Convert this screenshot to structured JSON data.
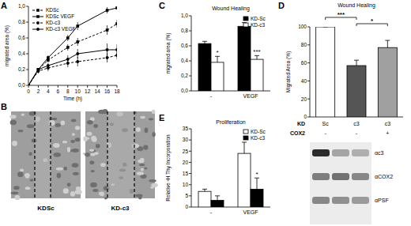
{
  "chart_data": [
    {
      "panel": "A",
      "type": "line",
      "x_label": "Time (h)",
      "y_label": "migrated area (%)",
      "xlim": [
        0,
        18
      ],
      "xticks": [
        0,
        2,
        4,
        6,
        8,
        10,
        12,
        14,
        16,
        18
      ],
      "ylim": [
        0,
        1
      ],
      "yticks": [
        {
          "value": 0,
          "label": "0,0"
        },
        {
          "value": 0.2,
          "label": "0,2"
        },
        {
          "value": 0.4,
          "label": "0,4"
        },
        {
          "value": 0.6,
          "label": "0,6"
        },
        {
          "value": 0.8,
          "label": "0,8"
        },
        {
          "value": 1,
          "label": "1,0"
        }
      ],
      "legend": "upper left",
      "x": [
        0,
        2,
        4,
        8,
        10,
        16,
        18
      ],
      "series": [
        {
          "name": "KDSc",
          "color": "#000000",
          "line_style": "dashed",
          "marker": "square",
          "values": [
            0,
            0.2,
            0.32,
            0.48,
            0.55,
            0.7,
            0.78
          ],
          "errors": [
            0,
            0.02,
            0.03,
            0.04,
            0.05,
            0.06,
            0.05
          ]
        },
        {
          "name": "KDSc VEGF",
          "color": "#000000",
          "line_style": "solid",
          "marker": "square",
          "values": [
            0,
            0.2,
            0.35,
            0.6,
            0.75,
            0.95,
            0.98
          ],
          "errors": [
            0,
            0.02,
            0.03,
            0.04,
            0.05,
            0.04,
            0.02
          ]
        },
        {
          "name": "KD-c3",
          "color": "#000000",
          "line_style": "dashed",
          "marker": "circle",
          "values": [
            0,
            0.18,
            0.22,
            0.28,
            0.3,
            0.35,
            0.38
          ],
          "errors": [
            0,
            0.03,
            0.04,
            0.05,
            0.06,
            0.06,
            0.05
          ]
        },
        {
          "name": "KD-c3 VEGF",
          "color": "#000000",
          "line_style": "solid",
          "marker": "circle",
          "values": [
            0,
            0.2,
            0.25,
            0.33,
            0.4,
            0.45,
            0.45
          ],
          "errors": [
            0,
            0.02,
            0.03,
            0.05,
            0.06,
            0.08,
            0.07
          ]
        }
      ]
    },
    {
      "panel": "C",
      "type": "bar",
      "title": "Wound Healing",
      "y_label": "migrated area (%)",
      "categories": [
        "-",
        "VEGF"
      ],
      "ylim": [
        0,
        1
      ],
      "yticks": [
        {
          "value": 0,
          "label": "0,0"
        },
        {
          "value": 0.2,
          "label": "0,2"
        },
        {
          "value": 0.4,
          "label": "0,4"
        },
        {
          "value": 0.6,
          "label": "0,6"
        },
        {
          "value": 0.8,
          "label": "0,8"
        },
        {
          "value": 1,
          "label": "1,0"
        }
      ],
      "legend": "upper right",
      "series": [
        {
          "name": "KD-Sc",
          "color": "#000000",
          "values": [
            0.63,
            0.86
          ],
          "errors": [
            0.03,
            0.05
          ]
        },
        {
          "name": "KD-c3",
          "color": "#ffffff",
          "values": [
            0.38,
            0.42
          ],
          "errors": [
            0.08,
            0.05
          ]
        }
      ],
      "annotations": [
        {
          "text": "*",
          "series": 1,
          "index": 0
        },
        {
          "text": "***",
          "series": 1,
          "index": 1
        }
      ]
    },
    {
      "panel": "D",
      "type": "bar",
      "title": "Wound Healing",
      "y_label": "Migrated Area (%)",
      "categories": [
        "Sc",
        "c3",
        "c3"
      ],
      "values": [
        100,
        57,
        77
      ],
      "errors": [
        0,
        6,
        8
      ],
      "colors": [
        "#ffffff",
        "#555555",
        "#a0a0a0"
      ],
      "ylim": [
        0,
        100
      ],
      "yticks": [
        0,
        20,
        40,
        60,
        80,
        100
      ],
      "annotations": [
        {
          "text": "***",
          "from": 0,
          "to": 1
        },
        {
          "text": "*",
          "from": 1,
          "to": 2
        }
      ],
      "conditions": [
        {
          "label": "KD",
          "cells": [
            "Sc",
            "c3",
            "c3"
          ]
        },
        {
          "label": "COX2",
          "cells": [
            "-",
            "-",
            "+"
          ]
        }
      ],
      "blot_labels": [
        "αc3",
        "αCOX2",
        "αPSF"
      ]
    },
    {
      "panel": "E",
      "type": "bar",
      "title": "Proliferation",
      "y_label": "Relative ³H Thy Incorporation",
      "categories": [
        "-",
        "VEGF"
      ],
      "ylim": [
        0,
        35
      ],
      "yticks": [
        0,
        5,
        10,
        15,
        20,
        25,
        30,
        35
      ],
      "legend": "upper right",
      "series": [
        {
          "name": "KD-Sc",
          "color": "#ffffff",
          "values": [
            7,
            24
          ],
          "errors": [
            1,
            5
          ]
        },
        {
          "name": "KD-c3",
          "color": "#000000",
          "values": [
            3,
            8
          ],
          "errors": [
            2,
            5
          ]
        }
      ],
      "annotations": [
        {
          "text": "*",
          "series": 1,
          "index": 1
        }
      ]
    }
  ],
  "images": {
    "panel": "B",
    "labels": [
      "KDSc",
      "KD-c3"
    ]
  }
}
